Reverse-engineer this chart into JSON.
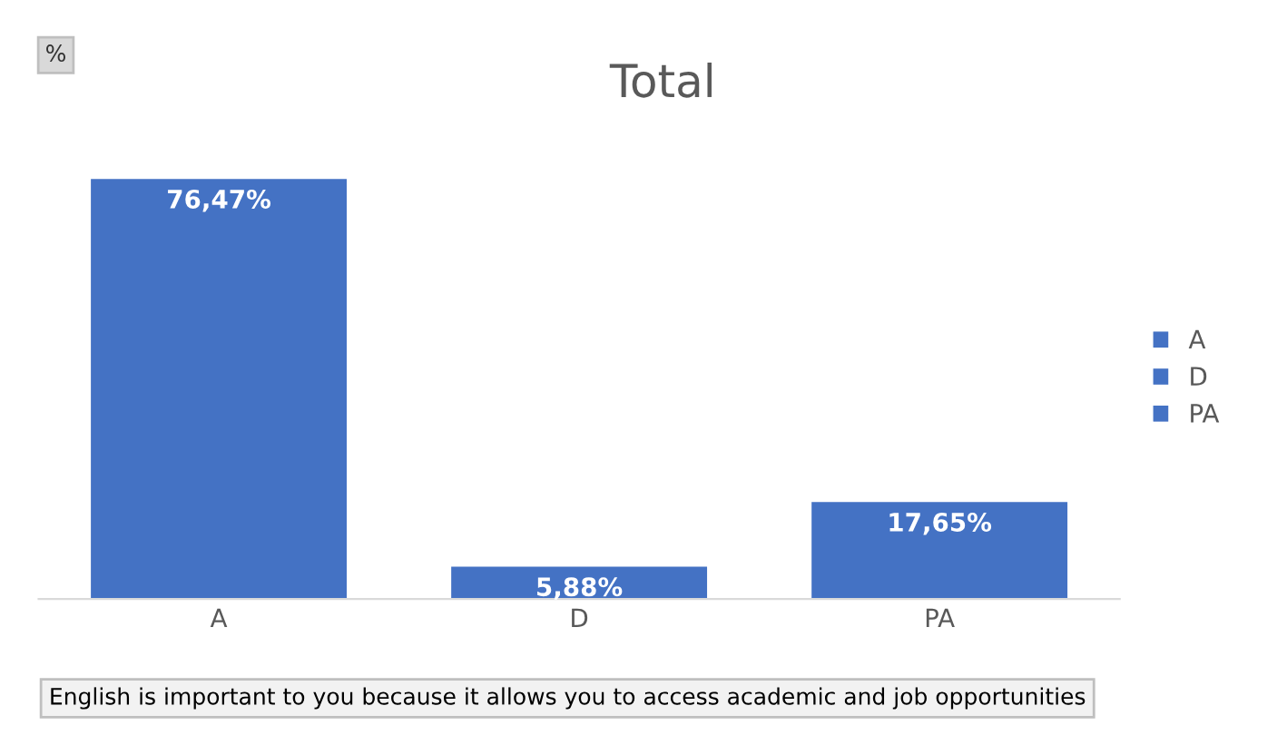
{
  "chart_data": {
    "type": "bar",
    "title": "Total",
    "categories": [
      "A",
      "D",
      "PA"
    ],
    "series": [
      {
        "name": "A",
        "color": "#4472c4",
        "values": [
          76.47,
          null,
          null
        ],
        "value_labels": [
          "76,47%",
          null,
          null
        ]
      },
      {
        "name": "D",
        "color": "#4472c4",
        "values": [
          null,
          5.88,
          null
        ],
        "value_labels": [
          null,
          "5,88%",
          null
        ]
      },
      {
        "name": "PA",
        "color": "#4472c4",
        "values": [
          null,
          null,
          17.65
        ],
        "value_labels": [
          null,
          null,
          "17,65%"
        ]
      }
    ],
    "legend": "right",
    "grid": false,
    "annotations": [
      "%",
      "English is important to you because it allows you to access academic and job opportunities"
    ]
  }
}
